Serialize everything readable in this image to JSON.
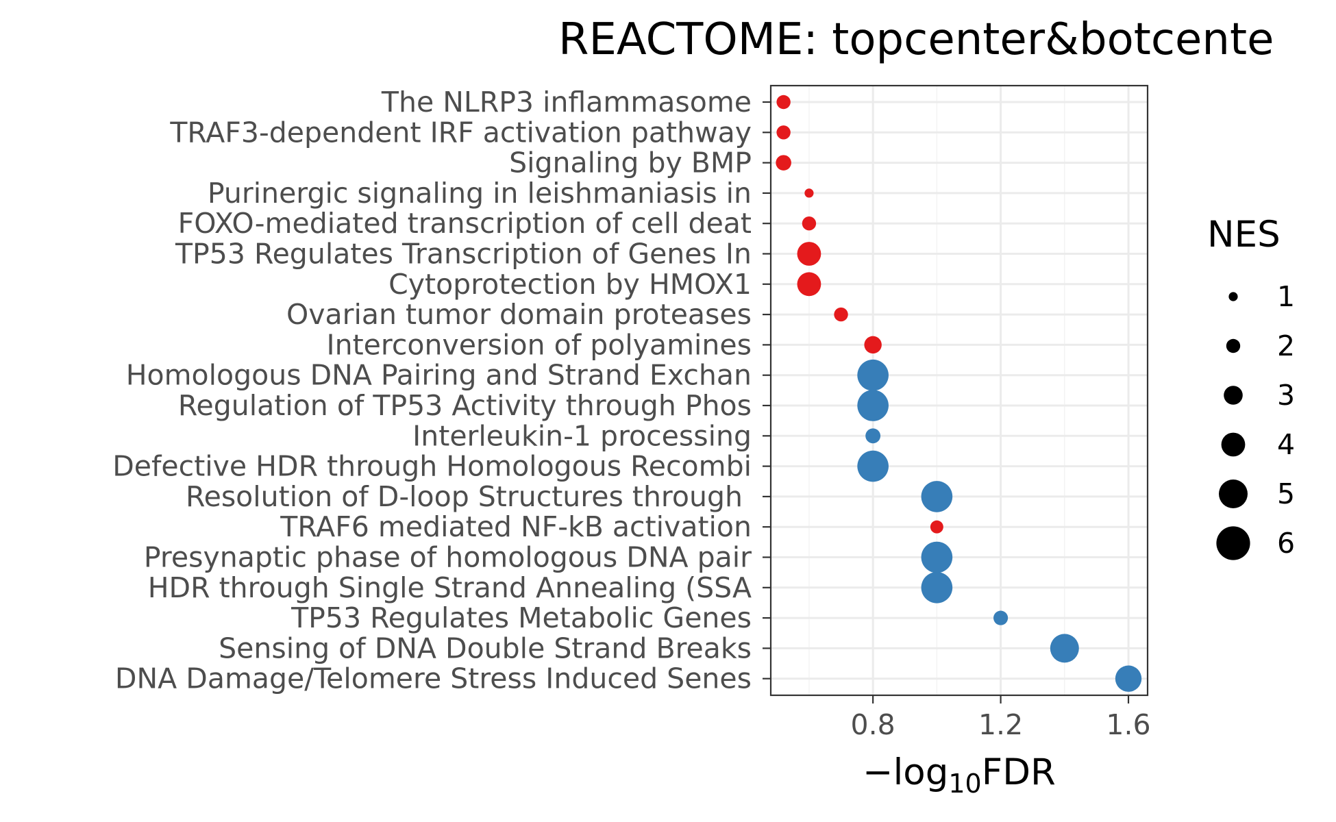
{
  "chart_data": {
    "type": "scatter",
    "title": "REACTOME: topcenter&botcente",
    "xlabel_prefix": "−log",
    "xlabel_sub": "10",
    "xlabel_suffix": "FDR",
    "ylabel": "",
    "xlim": [
      0.48,
      1.66
    ],
    "xticks": [
      0.8,
      1.2,
      1.6
    ],
    "xtick_labels": [
      "0.8",
      "1.2",
      "1.6"
    ],
    "grid": true,
    "legend": {
      "title": "NES",
      "position": "right",
      "sizes": [
        1,
        2,
        3,
        4,
        5,
        6
      ],
      "labels": [
        "1",
        "2",
        "3",
        "4",
        "5",
        "6"
      ]
    },
    "colors": {
      "positive": "#e41a1c",
      "negative": "#377eb8",
      "legend_dot": "#000000"
    },
    "points": [
      {
        "term": "The NLRP3 inflammasome",
        "x": 0.52,
        "nes": 2.0,
        "sign": "positive"
      },
      {
        "term": "TRAF3-dependent IRF activation pathway",
        "x": 0.52,
        "nes": 2.0,
        "sign": "positive"
      },
      {
        "term": "Signaling by BMP",
        "x": 0.52,
        "nes": 2.3,
        "sign": "positive"
      },
      {
        "term": "Purinergic signaling in leishmaniasis in",
        "x": 0.6,
        "nes": 1.0,
        "sign": "positive"
      },
      {
        "term": "FOXO-mediated transcription of cell deat",
        "x": 0.6,
        "nes": 2.0,
        "sign": "positive"
      },
      {
        "term": "TP53 Regulates Transcription of Genes In",
        "x": 0.6,
        "nes": 4.0,
        "sign": "positive"
      },
      {
        "term": "Cytoprotection by HMOX1",
        "x": 0.6,
        "nes": 4.0,
        "sign": "positive"
      },
      {
        "term": "Ovarian tumor domain proteases",
        "x": 0.7,
        "nes": 2.0,
        "sign": "positive"
      },
      {
        "term": "Interconversion of polyamines",
        "x": 0.8,
        "nes": 2.7,
        "sign": "positive"
      },
      {
        "term": "Homologous DNA Pairing and Strand Exchan",
        "x": 0.8,
        "nes": 5.5,
        "sign": "negative"
      },
      {
        "term": "Regulation of TP53 Activity through Phos",
        "x": 0.8,
        "nes": 5.5,
        "sign": "negative"
      },
      {
        "term": "Interleukin-1 processing",
        "x": 0.8,
        "nes": 2.2,
        "sign": "negative"
      },
      {
        "term": "Defective HDR through Homologous Recombi",
        "x": 0.8,
        "nes": 5.5,
        "sign": "negative"
      },
      {
        "term": "Resolution of D-loop Structures through ",
        "x": 1.0,
        "nes": 5.5,
        "sign": "negative"
      },
      {
        "term": "TRAF6 mediated NF-kB activation",
        "x": 1.0,
        "nes": 1.8,
        "sign": "positive"
      },
      {
        "term": "Presynaptic phase of homologous DNA pair",
        "x": 1.0,
        "nes": 5.5,
        "sign": "negative"
      },
      {
        "term": "HDR through Single Strand Annealing (SSA",
        "x": 1.0,
        "nes": 5.5,
        "sign": "negative"
      },
      {
        "term": "TP53 Regulates Metabolic Genes",
        "x": 1.2,
        "nes": 2.1,
        "sign": "negative"
      },
      {
        "term": "Sensing of DNA Double Strand Breaks",
        "x": 1.4,
        "nes": 5.0,
        "sign": "negative"
      },
      {
        "term": "DNA Damage/Telomere Stress Induced Senes",
        "x": 1.6,
        "nes": 4.5,
        "sign": "negative"
      }
    ]
  }
}
